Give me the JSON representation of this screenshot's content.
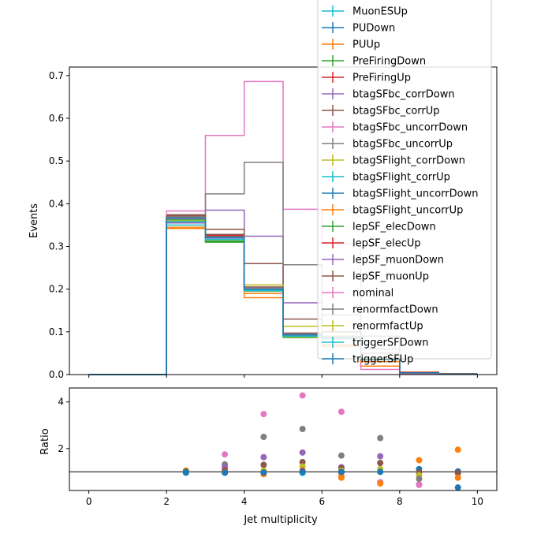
{
  "chart_data": [
    {
      "type": "step-histogram",
      "xlabel": "",
      "ylabel": "Events",
      "xlim": [
        -0.5,
        10.5
      ],
      "ylim": [
        0,
        0.72
      ],
      "yticks": [
        0.0,
        0.1,
        0.2,
        0.3,
        0.4,
        0.5,
        0.6,
        0.7
      ],
      "ytick_labels": [
        "0.0",
        "0.1",
        "0.2",
        "0.3",
        "0.4",
        "0.5",
        "0.6",
        "0.7"
      ],
      "bin_edges": [
        0,
        1,
        2,
        3,
        4,
        5,
        6,
        7,
        8,
        9,
        10
      ],
      "legend_position": "upper-right",
      "series": [
        {
          "name": "MuonESUp",
          "color": "#17becf",
          "values": [
            0,
            0,
            0.356,
            0.32,
            0.197,
            0.091,
            0.085,
            0.036,
            0.004,
            0.002
          ]
        },
        {
          "name": "PUDown",
          "color": "#1f77b4",
          "values": [
            0,
            0,
            0.361,
            0.322,
            0.199,
            0.092,
            0.084,
            0.036,
            0.004,
            0.001
          ]
        },
        {
          "name": "PUUp",
          "color": "#ff7f0e",
          "values": [
            0,
            0,
            0.345,
            0.323,
            0.18,
            0.087,
            0.066,
            0.02,
            0.006,
            0.002
          ]
        },
        {
          "name": "PreFiringDown",
          "color": "#2ca02c",
          "values": [
            0,
            0,
            0.362,
            0.31,
            0.195,
            0.089,
            0.085,
            0.036,
            0.004,
            0.002
          ]
        },
        {
          "name": "PreFiringUp",
          "color": "#d62728",
          "values": [
            0,
            0,
            0.37,
            0.326,
            0.205,
            0.097,
            0.088,
            0.04,
            0.005,
            0.002
          ]
        },
        {
          "name": "btagSFbc_corrDown",
          "color": "#9467bd",
          "values": [
            0,
            0,
            0.37,
            0.385,
            0.324,
            0.168,
            0.1,
            0.06,
            0.002,
            0.001
          ]
        },
        {
          "name": "btagSFbc_corrUp",
          "color": "#8c564b",
          "values": [
            0,
            0,
            0.374,
            0.34,
            0.26,
            0.13,
            0.1,
            0.05,
            0.003,
            0.001
          ]
        },
        {
          "name": "btagSFbc_uncorrDown",
          "color": "#e377c2",
          "values": [
            0,
            0,
            0.383,
            0.56,
            0.686,
            0.387,
            0.306,
            0.012,
            0.002,
            0.001
          ]
        },
        {
          "name": "btagSFbc_uncorrUp",
          "color": "#7f7f7f",
          "values": [
            0,
            0,
            0.37,
            0.423,
            0.497,
            0.257,
            0.14,
            0.09,
            0.003,
            0.001
          ]
        },
        {
          "name": "btagSFlight_corrDown",
          "color": "#bcbd22",
          "values": [
            0,
            0,
            0.355,
            0.315,
            0.21,
            0.113,
            0.09,
            0.04,
            0.004,
            0.001
          ]
        },
        {
          "name": "btagSFlight_corrUp",
          "color": "#17becf",
          "values": [
            0,
            0,
            0.35,
            0.315,
            0.195,
            0.09,
            0.085,
            0.036,
            0.004,
            0.001
          ]
        },
        {
          "name": "btagSFlight_uncorrDown",
          "color": "#1f77b4",
          "values": [
            0,
            0,
            0.36,
            0.32,
            0.2,
            0.092,
            0.084,
            0.036,
            0.004,
            0.001
          ]
        },
        {
          "name": "btagSFlight_uncorrUp",
          "color": "#ff7f0e",
          "values": [
            0,
            0,
            0.342,
            0.322,
            0.19,
            0.092,
            0.07,
            0.03,
            0.004,
            0.001
          ]
        },
        {
          "name": "lepSF_elecDown",
          "color": "#2ca02c",
          "values": [
            0,
            0,
            0.358,
            0.312,
            0.196,
            0.087,
            0.085,
            0.036,
            0.004,
            0.001
          ]
        },
        {
          "name": "lepSF_elecUp",
          "color": "#d62728",
          "values": [
            0,
            0,
            0.368,
            0.325,
            0.203,
            0.096,
            0.088,
            0.038,
            0.004,
            0.001
          ]
        },
        {
          "name": "lepSF_muonDown",
          "color": "#9467bd",
          "values": [
            0,
            0,
            0.355,
            0.318,
            0.197,
            0.09,
            0.085,
            0.036,
            0.004,
            0.001
          ]
        },
        {
          "name": "lepSF_muonUp",
          "color": "#8c564b",
          "values": [
            0,
            0,
            0.372,
            0.328,
            0.205,
            0.097,
            0.088,
            0.038,
            0.004,
            0.001
          ]
        },
        {
          "name": "nominal",
          "color": "#e377c2",
          "values": [
            0,
            0,
            0.365,
            0.32,
            0.2,
            0.092,
            0.086,
            0.036,
            0.004,
            0.001
          ]
        },
        {
          "name": "renormfactDown",
          "color": "#7f7f7f",
          "values": [
            0,
            0,
            0.368,
            0.323,
            0.203,
            0.095,
            0.088,
            0.038,
            0.004,
            0.001
          ]
        },
        {
          "name": "renormfactUp",
          "color": "#bcbd22",
          "values": [
            0,
            0,
            0.36,
            0.316,
            0.196,
            0.089,
            0.084,
            0.035,
            0.004,
            0.001
          ]
        },
        {
          "name": "triggerSFDown",
          "color": "#17becf",
          "values": [
            0,
            0,
            0.358,
            0.317,
            0.197,
            0.09,
            0.085,
            0.036,
            0.004,
            0.001
          ]
        },
        {
          "name": "triggerSFUp",
          "color": "#1f77b4",
          "values": [
            0,
            0,
            0.366,
            0.321,
            0.2,
            0.093,
            0.086,
            0.036,
            0.004,
            0.001
          ]
        }
      ]
    },
    {
      "type": "scatter",
      "xlabel": "Jet multiplicity",
      "ylabel": "Ratio",
      "xlim": [
        -0.5,
        10.5
      ],
      "ylim": [
        0.2,
        4.6
      ],
      "xticks": [
        0,
        2,
        4,
        6,
        8,
        10
      ],
      "xtick_labels": [
        "0",
        "2",
        "4",
        "6",
        "8",
        "10"
      ],
      "yticks": [
        2,
        4
      ],
      "ytick_labels": [
        "2",
        "4"
      ],
      "reference_line": 1.0,
      "points": [
        {
          "x": 2.5,
          "y": 1.05,
          "color": "#ff7f0e"
        },
        {
          "x": 2.5,
          "y": 1.02,
          "color": "#8c564b"
        },
        {
          "x": 2.5,
          "y": 0.99,
          "color": "#2ca02c"
        },
        {
          "x": 2.5,
          "y": 0.96,
          "color": "#17becf"
        },
        {
          "x": 2.5,
          "y": 0.97,
          "color": "#1f77b4"
        },
        {
          "x": 3.5,
          "y": 1.75,
          "color": "#e377c2"
        },
        {
          "x": 3.5,
          "y": 1.32,
          "color": "#7f7f7f"
        },
        {
          "x": 3.5,
          "y": 1.2,
          "color": "#9467bd"
        },
        {
          "x": 3.5,
          "y": 1.06,
          "color": "#8c564b"
        },
        {
          "x": 3.5,
          "y": 1.02,
          "color": "#d62728"
        },
        {
          "x": 3.5,
          "y": 0.98,
          "color": "#bcbd22"
        },
        {
          "x": 3.5,
          "y": 0.97,
          "color": "#2ca02c"
        },
        {
          "x": 3.5,
          "y": 0.96,
          "color": "#1f77b4"
        },
        {
          "x": 4.5,
          "y": 3.48,
          "color": "#e377c2"
        },
        {
          "x": 4.5,
          "y": 2.5,
          "color": "#7f7f7f"
        },
        {
          "x": 4.5,
          "y": 1.63,
          "color": "#9467bd"
        },
        {
          "x": 4.5,
          "y": 1.3,
          "color": "#8c564b"
        },
        {
          "x": 4.5,
          "y": 1.05,
          "color": "#bcbd22"
        },
        {
          "x": 4.5,
          "y": 0.9,
          "color": "#ff7f0e"
        },
        {
          "x": 4.5,
          "y": 0.97,
          "color": "#1f77b4"
        },
        {
          "x": 5.5,
          "y": 4.28,
          "color": "#e377c2"
        },
        {
          "x": 5.5,
          "y": 2.84,
          "color": "#7f7f7f"
        },
        {
          "x": 5.5,
          "y": 1.83,
          "color": "#9467bd"
        },
        {
          "x": 5.5,
          "y": 1.42,
          "color": "#8c564b"
        },
        {
          "x": 5.5,
          "y": 1.23,
          "color": "#bcbd22"
        },
        {
          "x": 5.5,
          "y": 1.04,
          "color": "#d62728"
        },
        {
          "x": 5.5,
          "y": 0.96,
          "color": "#ff7f0e"
        },
        {
          "x": 5.5,
          "y": 0.95,
          "color": "#17becf"
        },
        {
          "x": 5.5,
          "y": 1.0,
          "color": "#1f77b4"
        },
        {
          "x": 6.5,
          "y": 3.58,
          "color": "#e377c2"
        },
        {
          "x": 6.5,
          "y": 1.7,
          "color": "#7f7f7f"
        },
        {
          "x": 6.5,
          "y": 1.2,
          "color": "#9467bd"
        },
        {
          "x": 6.5,
          "y": 1.16,
          "color": "#8c564b"
        },
        {
          "x": 6.5,
          "y": 1.05,
          "color": "#bcbd22"
        },
        {
          "x": 6.5,
          "y": 0.98,
          "color": "#d62728"
        },
        {
          "x": 6.5,
          "y": 0.82,
          "color": "#ff7f0e"
        },
        {
          "x": 6.5,
          "y": 0.75,
          "color": "#ff7f0e"
        },
        {
          "x": 6.5,
          "y": 1.0,
          "color": "#1f77b4"
        },
        {
          "x": 7.5,
          "y": 2.45,
          "color": "#7f7f7f"
        },
        {
          "x": 7.5,
          "y": 1.67,
          "color": "#9467bd"
        },
        {
          "x": 7.5,
          "y": 1.38,
          "color": "#8c564b"
        },
        {
          "x": 7.5,
          "y": 1.12,
          "color": "#bcbd22"
        },
        {
          "x": 7.5,
          "y": 0.56,
          "color": "#e377c2"
        },
        {
          "x": 7.5,
          "y": 0.5,
          "color": "#ff7f0e"
        },
        {
          "x": 7.5,
          "y": 1.0,
          "color": "#1f77b4"
        },
        {
          "x": 8.5,
          "y": 1.5,
          "color": "#ff7f0e"
        },
        {
          "x": 8.5,
          "y": 1.12,
          "color": "#1f77b4"
        },
        {
          "x": 8.5,
          "y": 0.98,
          "color": "#8c564b"
        },
        {
          "x": 8.5,
          "y": 0.85,
          "color": "#bcbd22"
        },
        {
          "x": 8.5,
          "y": 0.7,
          "color": "#7f7f7f"
        },
        {
          "x": 8.5,
          "y": 0.46,
          "color": "#9467bd"
        },
        {
          "x": 8.5,
          "y": 0.44,
          "color": "#e377c2"
        },
        {
          "x": 9.5,
          "y": 1.95,
          "color": "#ff7f0e"
        },
        {
          "x": 9.5,
          "y": 1.02,
          "color": "#1f77b4"
        },
        {
          "x": 9.5,
          "y": 0.95,
          "color": "#8c564b"
        },
        {
          "x": 9.5,
          "y": 0.75,
          "color": "#ff7f0e"
        },
        {
          "x": 9.5,
          "y": 0.33,
          "color": "#1f77b4"
        }
      ]
    }
  ]
}
